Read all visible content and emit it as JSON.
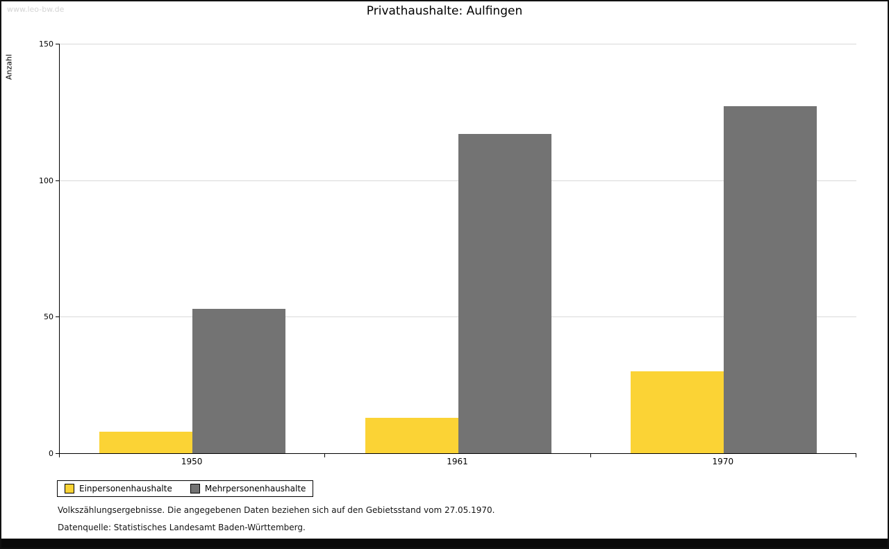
{
  "watermark": "www.leo-bw.de",
  "title": "Privathaushalte: Aulfingen",
  "chart_data": {
    "type": "bar",
    "title": "Privathaushalte: Aulfingen",
    "categories": [
      "1950",
      "1961",
      "1970"
    ],
    "series": [
      {
        "name": "Einpersonenhaushalte",
        "color": "#FBD335",
        "values": [
          8,
          13,
          30
        ]
      },
      {
        "name": "Mehrpersonenhaushalte",
        "color": "#737373",
        "values": [
          53,
          117,
          127
        ]
      }
    ],
    "xlabel": "",
    "ylabel": "Anzahl",
    "ylim": [
      0,
      150
    ],
    "yticks": [
      0,
      50,
      100,
      150
    ],
    "grid": true,
    "legend_position": "bottom-left"
  },
  "footnotes": {
    "line1": "Volkszählungsergebnisse. Die angegebenen Daten beziehen sich auf den Gebietsstand vom 27.05.1970.",
    "line2": "Datenquelle: Statistisches Landesamt Baden-Württemberg."
  }
}
